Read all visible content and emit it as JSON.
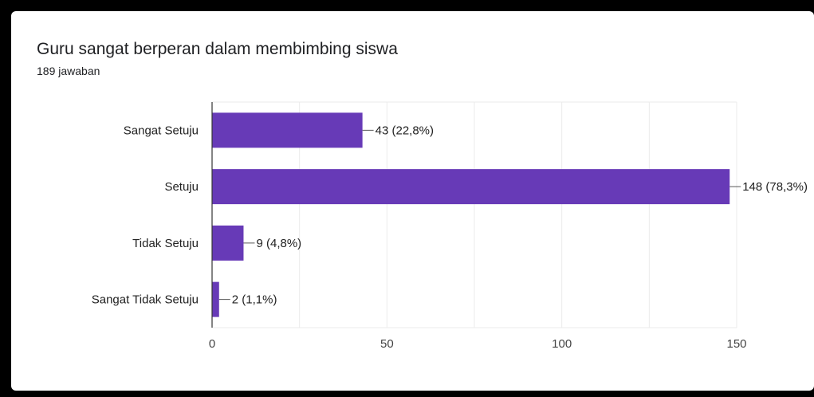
{
  "form": {
    "question": "Guru sangat berperan dalam membimbing siswa",
    "responses": "189 jawaban"
  },
  "colors": {
    "bar": "#673ab7",
    "grid": "#ebebeb",
    "axis": "#333333"
  },
  "chart_data": {
    "type": "bar",
    "orientation": "horizontal",
    "title": "Guru sangat berperan dalam membimbing siswa",
    "subtitle": "189 jawaban",
    "categories": [
      "Sangat Setuju",
      "Setuju",
      "Tidak Setuju",
      "Sangat Tidak Setuju"
    ],
    "values": [
      43,
      148,
      9,
      2
    ],
    "data_labels": [
      "43 (22,8%)",
      "148 (78,3%)",
      "9 (4,8%)",
      "2 (1,1%)"
    ],
    "xlim": [
      0,
      150
    ],
    "xticks": [
      0,
      50,
      100,
      150
    ],
    "grid": true,
    "legend": "none"
  }
}
